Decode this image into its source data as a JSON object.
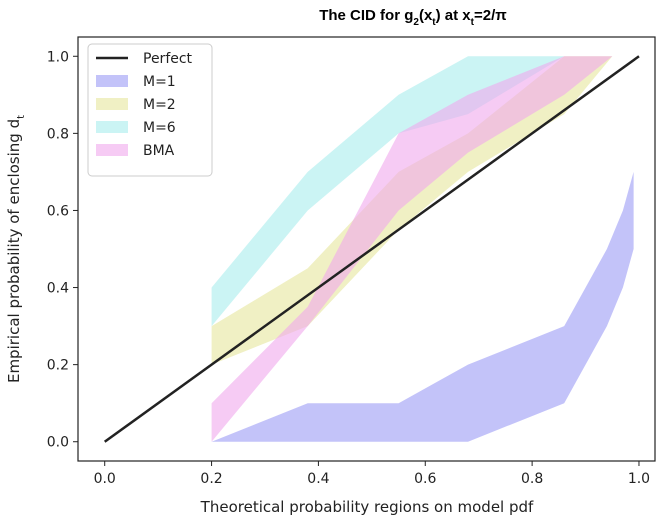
{
  "chart_data": {
    "type": "area",
    "title": {
      "prefix": "The CID for g",
      "sub1": "2",
      "mid1": "(x",
      "sub2": "t",
      "mid2": ") at x",
      "sub3": "t",
      "suffix": "=2/π"
    },
    "xlabel": "Theoretical probability regions on model pdf",
    "ylabel_main": "Empirical probability of enclosing d",
    "ylabel_sub": "t",
    "xlim": [
      -0.05,
      1.03
    ],
    "ylim": [
      -0.05,
      1.05
    ],
    "xticks": [
      0.0,
      0.2,
      0.4,
      0.6,
      0.8,
      1.0
    ],
    "xtick_labels": [
      "0.0",
      "0.2",
      "0.4",
      "0.6",
      "0.8",
      "1.0"
    ],
    "yticks": [
      0.0,
      0.2,
      0.4,
      0.6,
      0.8,
      1.0
    ],
    "ytick_labels": [
      "0.0",
      "0.2",
      "0.4",
      "0.6",
      "0.8",
      "1.0"
    ],
    "legend_position": "upper-left",
    "perfect_line": {
      "name": "Perfect",
      "color": "#222222",
      "x": [
        0.0,
        1.0
      ],
      "y": [
        0.0,
        1.0
      ]
    },
    "series": [
      {
        "name": "M=1",
        "color": "#9b9bf5",
        "x": [
          0.2,
          0.38,
          0.55,
          0.68,
          0.86,
          0.94,
          0.97,
          0.99
        ],
        "upper": [
          0.0,
          0.1,
          0.1,
          0.2,
          0.3,
          0.5,
          0.6,
          0.7
        ],
        "lower": [
          0.0,
          0.0,
          0.0,
          0.0,
          0.1,
          0.3,
          0.4,
          0.5
        ]
      },
      {
        "name": "M=2",
        "color": "#e6e69c",
        "x": [
          0.2,
          0.38,
          0.55,
          0.68,
          0.86,
          0.95
        ],
        "upper": [
          0.3,
          0.45,
          0.7,
          0.8,
          1.0,
          1.0
        ],
        "lower": [
          0.2,
          0.3,
          0.55,
          0.7,
          0.85,
          1.0
        ]
      },
      {
        "name": "M=6",
        "color": "#a8ecec",
        "x": [
          0.2,
          0.38,
          0.55,
          0.68,
          0.86,
          0.95
        ],
        "upper": [
          0.4,
          0.7,
          0.9,
          1.0,
          1.0,
          1.0
        ],
        "lower": [
          0.3,
          0.6,
          0.8,
          0.85,
          1.0,
          1.0
        ]
      },
      {
        "name": "BMA",
        "color": "#f0a8ec",
        "x": [
          0.2,
          0.38,
          0.55,
          0.68,
          0.86,
          0.95
        ],
        "upper": [
          0.1,
          0.35,
          0.8,
          0.9,
          1.0,
          1.0
        ],
        "lower": [
          0.0,
          0.3,
          0.6,
          0.75,
          0.9,
          1.0
        ]
      }
    ]
  }
}
